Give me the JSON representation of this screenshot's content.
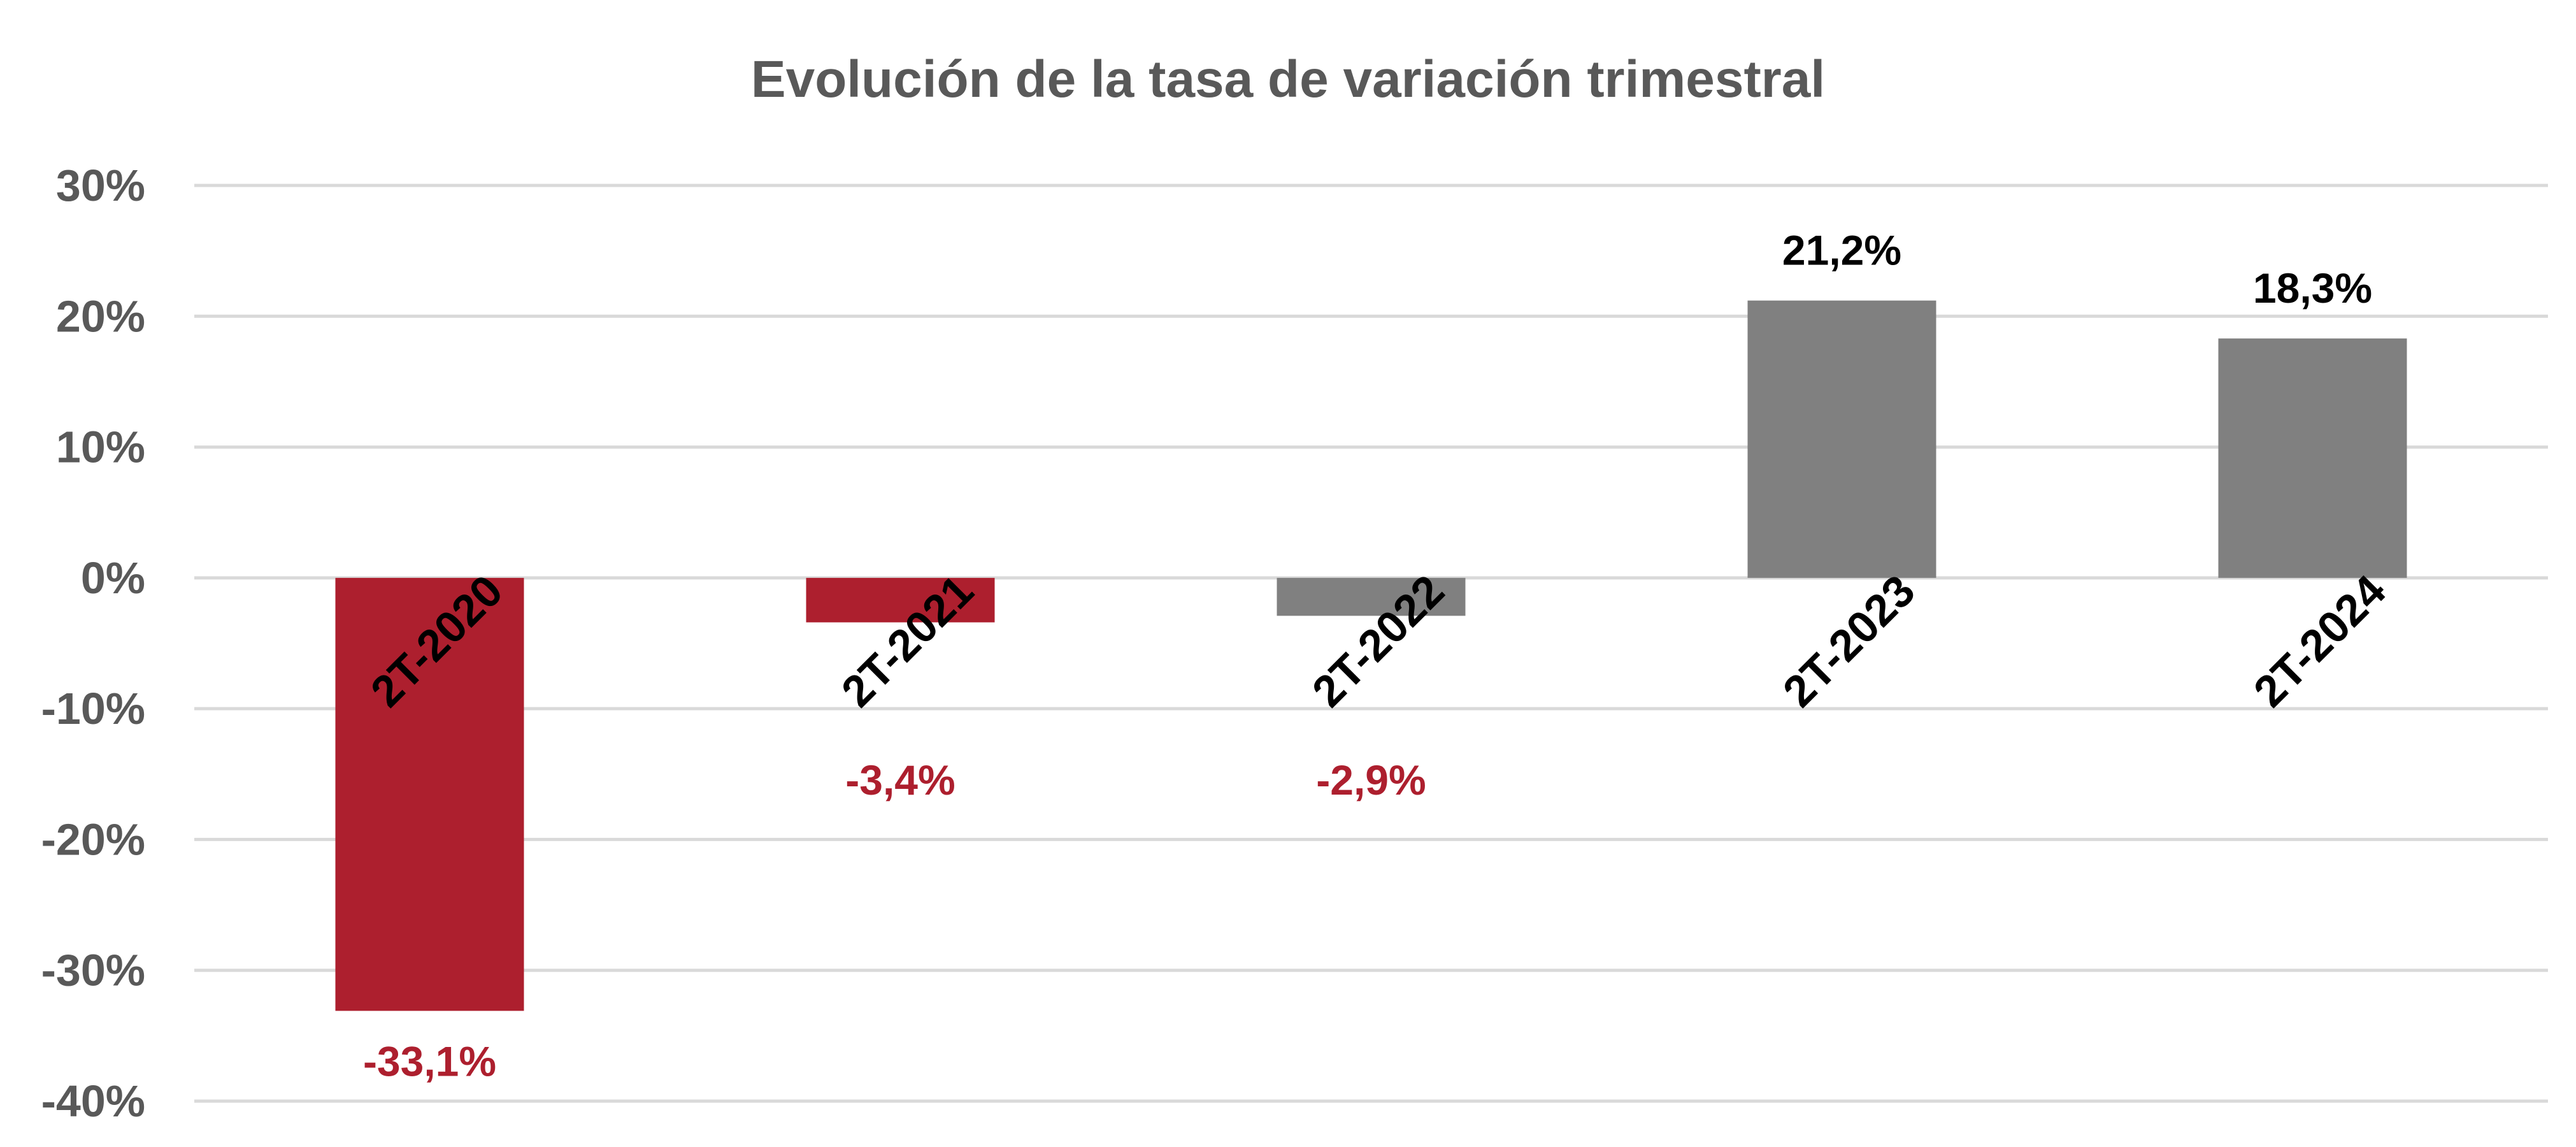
{
  "chart_data": {
    "type": "bar",
    "title": "Evolución de la tasa de variación trimestral",
    "xlabel": "",
    "ylabel": "",
    "categories": [
      "2T-2020",
      "2T-2021",
      "2T-2022",
      "2T-2023",
      "2T-2024"
    ],
    "values": [
      -33.1,
      -3.4,
      -2.9,
      21.2,
      18.3
    ],
    "data_labels": [
      "-33,1%",
      "-3,4%",
      "-2,9%",
      "21,2%",
      "18,3%"
    ],
    "bar_colors": [
      "#ad1f2e",
      "#ad1f2e",
      "#808080",
      "#808080",
      "#808080"
    ],
    "label_colors": [
      "#ad1f2e",
      "#ad1f2e",
      "#ad1f2e",
      "#000000",
      "#000000"
    ],
    "ylim": [
      -40,
      30
    ],
    "yticks": [
      30,
      20,
      10,
      0,
      -10,
      -20,
      -30,
      -40
    ],
    "ytick_labels": [
      "30%",
      "20%",
      "10%",
      "0%",
      "-10%",
      "-20%",
      "-30%",
      "-40%"
    ],
    "grid": true,
    "legend": "none"
  }
}
